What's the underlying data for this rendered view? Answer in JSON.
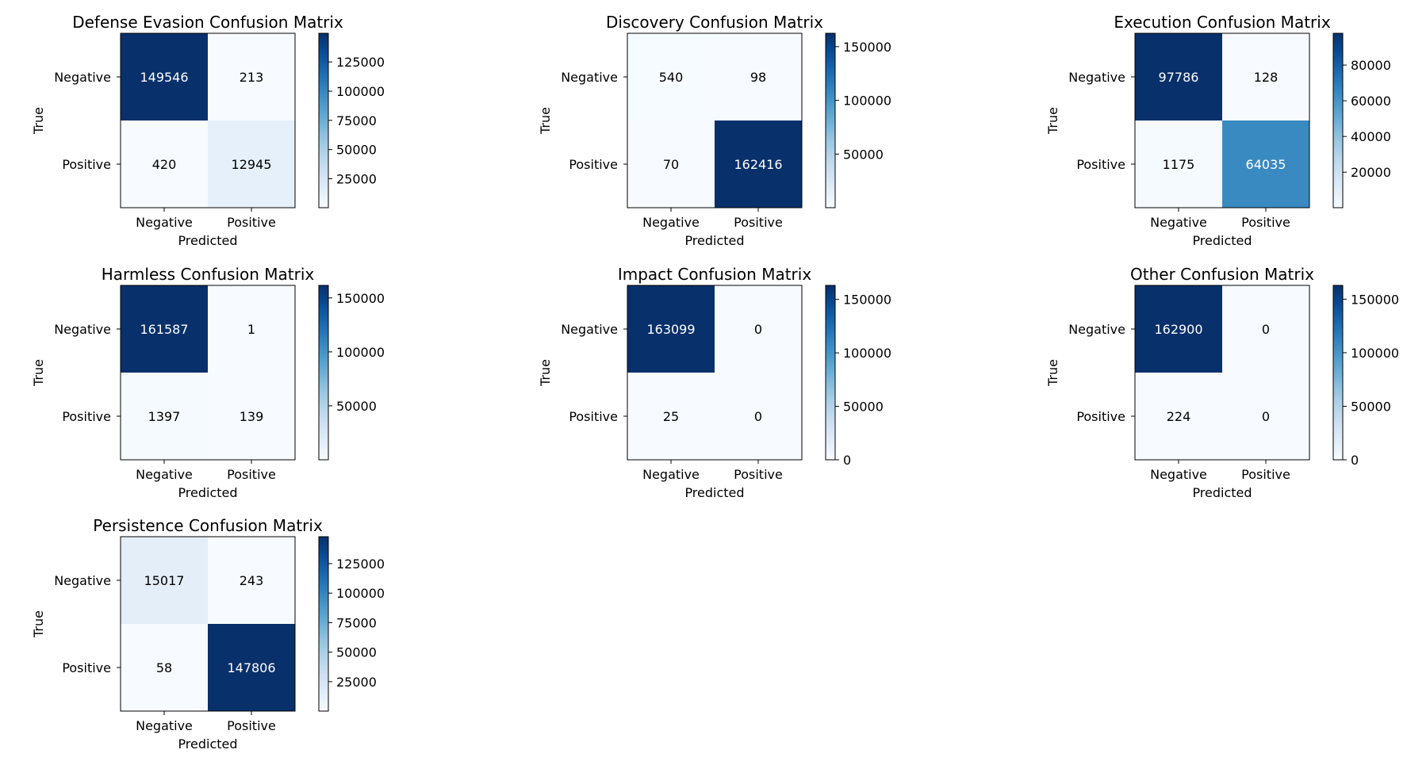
{
  "figure": {
    "grid_rows": 3,
    "grid_cols": 3,
    "colormap": "Blues",
    "colormap_stops": [
      "#f7fbff",
      "#deebf7",
      "#c6dbef",
      "#9ecae1",
      "#6baed6",
      "#4292c6",
      "#2171b5",
      "#08519c",
      "#08306b"
    ]
  },
  "chart_data": [
    {
      "type": "heatmap",
      "title": "Defense Evasion Confusion Matrix",
      "xlabel": "Predicted",
      "ylabel": "True",
      "x_categories": [
        "Negative",
        "Positive"
      ],
      "y_categories": [
        "Negative",
        "Positive"
      ],
      "values": [
        [
          149546,
          213
        ],
        [
          420,
          12945
        ]
      ],
      "colorbar_ticks": [
        25000,
        50000,
        75000,
        100000,
        125000
      ]
    },
    {
      "type": "heatmap",
      "title": "Discovery Confusion Matrix",
      "xlabel": "Predicted",
      "ylabel": "True",
      "x_categories": [
        "Negative",
        "Positive"
      ],
      "y_categories": [
        "Negative",
        "Positive"
      ],
      "values": [
        [
          540,
          98
        ],
        [
          70,
          162416
        ]
      ],
      "colorbar_ticks": [
        50000,
        100000,
        150000
      ]
    },
    {
      "type": "heatmap",
      "title": "Execution Confusion Matrix",
      "xlabel": "Predicted",
      "ylabel": "True",
      "x_categories": [
        "Negative",
        "Positive"
      ],
      "y_categories": [
        "Negative",
        "Positive"
      ],
      "values": [
        [
          97786,
          128
        ],
        [
          1175,
          64035
        ]
      ],
      "colorbar_ticks": [
        20000,
        40000,
        60000,
        80000
      ]
    },
    {
      "type": "heatmap",
      "title": "Harmless Confusion Matrix",
      "xlabel": "Predicted",
      "ylabel": "True",
      "x_categories": [
        "Negative",
        "Positive"
      ],
      "y_categories": [
        "Negative",
        "Positive"
      ],
      "values": [
        [
          161587,
          1
        ],
        [
          1397,
          139
        ]
      ],
      "colorbar_ticks": [
        50000,
        100000,
        150000
      ]
    },
    {
      "type": "heatmap",
      "title": "Impact Confusion Matrix",
      "xlabel": "Predicted",
      "ylabel": "True",
      "x_categories": [
        "Negative",
        "Positive"
      ],
      "y_categories": [
        "Negative",
        "Positive"
      ],
      "values": [
        [
          163099,
          0
        ],
        [
          25,
          0
        ]
      ],
      "colorbar_ticks": [
        0,
        50000,
        100000,
        150000
      ]
    },
    {
      "type": "heatmap",
      "title": "Other Confusion Matrix",
      "xlabel": "Predicted",
      "ylabel": "True",
      "x_categories": [
        "Negative",
        "Positive"
      ],
      "y_categories": [
        "Negative",
        "Positive"
      ],
      "values": [
        [
          162900,
          0
        ],
        [
          224,
          0
        ]
      ],
      "colorbar_ticks": [
        0,
        50000,
        100000,
        150000
      ]
    },
    {
      "type": "heatmap",
      "title": "Persistence Confusion Matrix",
      "xlabel": "Predicted",
      "ylabel": "True",
      "x_categories": [
        "Negative",
        "Positive"
      ],
      "y_categories": [
        "Negative",
        "Positive"
      ],
      "values": [
        [
          15017,
          243
        ],
        [
          58,
          147806
        ]
      ],
      "colorbar_ticks": [
        25000,
        50000,
        75000,
        100000,
        125000
      ]
    }
  ]
}
